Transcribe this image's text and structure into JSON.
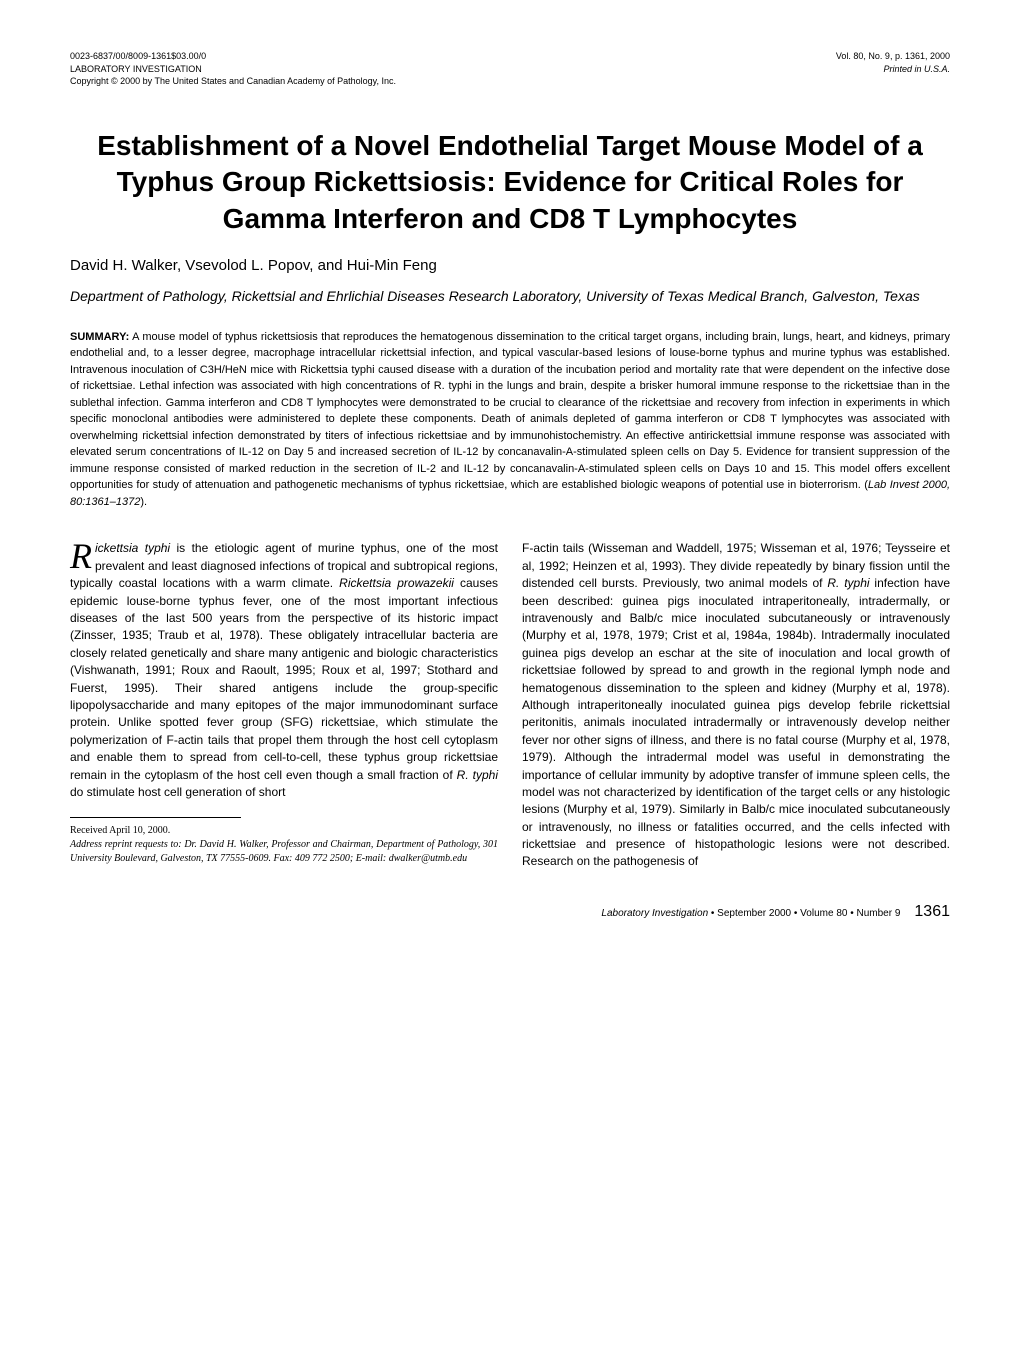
{
  "header": {
    "left_line1": "0023-6837/00/8009-1361$03.00/0",
    "left_line2": "LABORATORY INVESTIGATION",
    "left_line3": "Copyright © 2000 by The United States and Canadian Academy of Pathology, Inc.",
    "right_line1": "Vol. 80, No. 9, p. 1361, 2000",
    "right_line2": "Printed in U.S.A."
  },
  "title": "Establishment of a Novel Endothelial Target Mouse Model of a Typhus Group Rickettsiosis: Evidence for Critical Roles for Gamma Interferon and CD8 T Lymphocytes",
  "authors": "David H. Walker, Vsevolod L. Popov, and Hui-Min Feng",
  "affiliation": "Department of Pathology, Rickettsial and Ehrlichial Diseases Research Laboratory, University of Texas Medical Branch, Galveston, Texas",
  "summary": {
    "label": "SUMMARY:",
    "text": " A mouse model of typhus rickettsiosis that reproduces the hematogenous dissemination to the critical target organs, including brain, lungs, heart, and kidneys, primary endothelial and, to a lesser degree, macrophage intracellular rickettsial infection, and typical vascular-based lesions of louse-borne typhus and murine typhus was established. Intravenous inoculation of C3H/HeN mice with Rickettsia typhi caused disease with a duration of the incubation period and mortality rate that were dependent on the infective dose of rickettsiae. Lethal infection was associated with high concentrations of R. typhi in the lungs and brain, despite a brisker humoral immune response to the rickettsiae than in the sublethal infection. Gamma interferon and CD8 T lymphocytes were demonstrated to be crucial to clearance of the rickettsiae and recovery from infection in experiments in which specific monoclonal antibodies were administered to deplete these components. Death of animals depleted of gamma interferon or CD8 T lymphocytes was associated with overwhelming rickettsial infection demonstrated by titers of infectious rickettsiae and by immunohistochemistry. An effective antirickettsial immune response was associated with elevated serum concentrations of IL-12 on Day 5 and increased secretion of IL-12 by concanavalin-A-stimulated spleen cells on Day 5. Evidence for transient suppression of the immune response consisted of marked reduction in the secretion of IL-2 and IL-12 by concanavalin-A-stimulated spleen cells on Days 10 and 15. This model offers excellent opportunities for study of attenuation and pathogenetic mechanisms of typhus rickettsiae, which are established biologic weapons of potential use in bioterrorism. (",
    "citation": "Lab Invest 2000, 80:1361–1372",
    "close": ")."
  },
  "body": {
    "col1_a": "ickettsia typhi",
    "col1_b": " is the etiologic agent of murine typhus, one of the most prevalent and least diagnosed infections of tropical and subtropical regions, typically coastal locations with a warm climate. ",
    "col1_c": "Rickettsia prowazekii",
    "col1_d": " causes epidemic louse-borne typhus fever, one of the most important infectious diseases of the last 500 years from the perspective of its historic impact (Zinsser, 1935; Traub et al, 1978). These obligately intracellular bacteria are closely related genetically and share many antigenic and biologic characteristics (Vishwanath, 1991; Roux and Raoult, 1995; Roux et al, 1997; Stothard and Fuerst, 1995). Their shared antigens include the group-specific lipopolysaccharide and many epitopes of the major immunodominant surface protein. Unlike spotted fever group (SFG) rickettsiae, which stimulate the polymerization of F-actin tails that propel them through the host cell cytoplasm and enable them to spread from cell-to-cell, these typhus group rickettsiae remain in the cytoplasm of the host cell even though a small fraction of ",
    "col1_e": "R. typhi",
    "col1_f": " do stimulate host cell generation of short",
    "col2_a": "F-actin tails (Wisseman and Waddell, 1975; Wisseman et al, 1976; Teysseire et al, 1992; Heinzen et al, 1993). They divide repeatedly by binary fission until the distended cell bursts. Previously, two animal models of ",
    "col2_b": "R. typhi",
    "col2_c": " infection have been described: guinea pigs inoculated intraperitoneally, intradermally, or intravenously and Balb/c mice inoculated subcutaneously or intravenously (Murphy et al, 1978, 1979; Crist et al, 1984a, 1984b). Intradermally inoculated guinea pigs develop an eschar at the site of inoculation and local growth of rickettsiae followed by spread to and growth in the regional lymph node and hematogenous dissemination to the spleen and kidney (Murphy et al, 1978). Although intraperitoneally inoculated guinea pigs develop febrile rickettsial peritonitis, animals inoculated intradermally or intravenously develop neither fever nor other signs of illness, and there is no fatal course (Murphy et al, 1978, 1979). Although the intradermal model was useful in demonstrating the importance of cellular immunity by adoptive transfer of immune spleen cells, the model was not characterized by identification of the target cells or any histologic lesions (Murphy et al, 1979). Similarly in Balb/c mice inoculated subcutaneously or intravenously, no illness or fatalities occurred, and the cells infected with rickettsiae and presence of histopathologic lesions were not described. Research on the pathogenesis of"
  },
  "footnote": {
    "received": "Received April 10, 2000.",
    "address_label": "Address reprint requests to: Dr. David H. Walker, Professor and Chairman, Department of Pathology, 301 University Boulevard, Galveston, TX 77555-0609. Fax: 409 772 2500; E-mail: dwalker@utmb.edu"
  },
  "footer": {
    "journal": "Laboratory Investigation",
    "issue": " • September 2000 • Volume 80 • Number 9",
    "page": "1361"
  }
}
